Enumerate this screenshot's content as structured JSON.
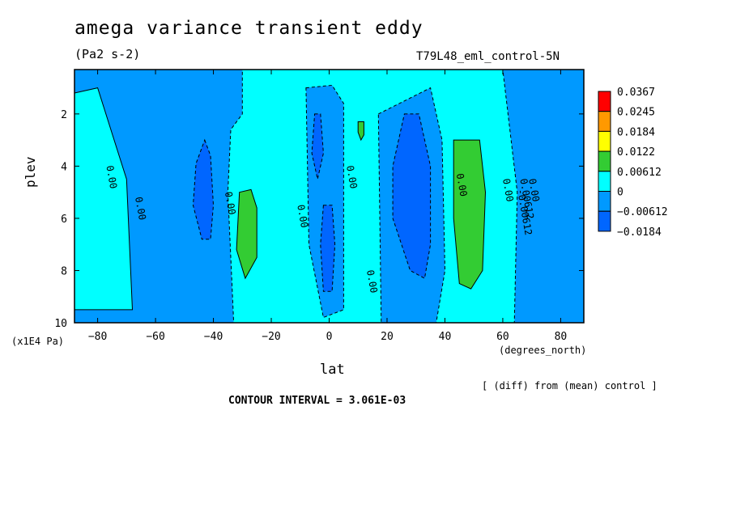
{
  "page": {
    "title": "amega variance transient eddy",
    "units": "(Pa2 s-2)",
    "run_label": "T79L48_eml_control-5N",
    "y_unit_note": "(x1E4 Pa)",
    "x_unit_note": "(degrees_north)",
    "diff_note": "[ (diff) from (mean) control ]",
    "contour_interval": "CONTOUR INTERVAL = 3.061E-03"
  },
  "chart_data": {
    "type": "heatmap",
    "xlabel": "lat",
    "ylabel": "plev",
    "xlim": [
      -88,
      88
    ],
    "ylim": [
      10,
      0.3
    ],
    "x_ticks": [
      -80,
      -60,
      -40,
      -20,
      0,
      20,
      40,
      60,
      80
    ],
    "y_ticks": [
      2,
      4,
      6,
      8,
      10
    ],
    "legend": {
      "position": "right",
      "labels": [
        "0.0367",
        "0.0245",
        "0.0184",
        "0.0122",
        "0.00612",
        "0",
        "-0.00612",
        "-0.0184"
      ],
      "colors": [
        "#ff0000",
        "#ff9900",
        "#ffff00",
        "#33cc33",
        "#00ffff",
        "#0099ff",
        "#0066ff"
      ]
    },
    "contour_labels": [
      "0.00",
      "0.00",
      "0.00",
      "0.00",
      "0.00",
      "0.00",
      "0.00",
      "0.00",
      "-0.00612",
      "0.00612",
      "0.00"
    ],
    "background_color": "#00ffff",
    "regions": [
      {
        "name": "sh-blue-band",
        "level": "-0.00612",
        "color": "#0099ff",
        "points": [
          [
            -88,
            0.3
          ],
          [
            -30,
            0.3
          ],
          [
            -30,
            2
          ],
          [
            -34,
            2.6
          ],
          [
            -35,
            5
          ],
          [
            -33,
            10
          ],
          [
            -88,
            10
          ]
        ]
      },
      {
        "name": "cyan-lobe-south",
        "level": "0",
        "color": "#00ffff",
        "points": [
          [
            -88,
            1.2
          ],
          [
            -80,
            1.0
          ],
          [
            -74,
            3.1
          ],
          [
            -70,
            4.5
          ],
          [
            -68,
            9.5
          ],
          [
            -88,
            9.5
          ]
        ]
      },
      {
        "name": "sh-min",
        "level": "-0.0184",
        "color": "#0066ff",
        "points": [
          [
            -43,
            3.0
          ],
          [
            -41,
            3.6
          ],
          [
            -40,
            5.5
          ],
          [
            -41,
            6.8
          ],
          [
            -44,
            6.8
          ],
          [
            -47,
            5.5
          ],
          [
            -46,
            3.9
          ]
        ]
      },
      {
        "name": "sh-max",
        "level": "0.00612",
        "color": "#33cc33",
        "points": [
          [
            -31,
            5.0
          ],
          [
            -27,
            4.9
          ],
          [
            -25,
            5.6
          ],
          [
            -25,
            7.5
          ],
          [
            -29,
            8.3
          ],
          [
            -32,
            7.2
          ]
        ]
      },
      {
        "name": "eq-blue",
        "level": "-0.00612",
        "color": "#0099ff",
        "points": [
          [
            -8,
            1.0
          ],
          [
            1,
            0.9
          ],
          [
            5,
            1.6
          ],
          [
            5,
            9.5
          ],
          [
            -2,
            9.8
          ],
          [
            -7,
            7
          ]
        ]
      },
      {
        "name": "eq-min-upper",
        "level": "-0.0184",
        "color": "#0066ff",
        "points": [
          [
            -5,
            2.0
          ],
          [
            -3,
            2.0
          ],
          [
            -2,
            3.5
          ],
          [
            -4,
            4.5
          ],
          [
            -6,
            3.5
          ]
        ]
      },
      {
        "name": "eq-min-lower",
        "level": "-0.0184",
        "color": "#0066ff",
        "points": [
          [
            -2,
            5.5
          ],
          [
            1,
            5.5
          ],
          [
            2,
            7
          ],
          [
            1,
            8.8
          ],
          [
            -2,
            8.8
          ],
          [
            -3,
            7
          ]
        ]
      },
      {
        "name": "eq-max",
        "level": "0.00612",
        "color": "#33cc33",
        "points": [
          [
            10,
            2.3
          ],
          [
            12,
            2.3
          ],
          [
            12,
            2.8
          ],
          [
            11,
            3.0
          ],
          [
            10,
            2.7
          ]
        ]
      },
      {
        "name": "nh-blue",
        "level": "-0.00612",
        "color": "#0099ff",
        "points": [
          [
            17,
            2.0
          ],
          [
            35,
            1.0
          ],
          [
            39,
            3
          ],
          [
            40,
            8
          ],
          [
            37,
            10
          ],
          [
            18,
            10
          ]
        ]
      },
      {
        "name": "nh-min",
        "level": "-0.0184",
        "color": "#0066ff",
        "points": [
          [
            26,
            2.0
          ],
          [
            31,
            2.0
          ],
          [
            35,
            4
          ],
          [
            35,
            7
          ],
          [
            33,
            8.3
          ],
          [
            28,
            8
          ],
          [
            22,
            6
          ],
          [
            22,
            4
          ]
        ]
      },
      {
        "name": "nh-max",
        "level": "0.00612",
        "color": "#33cc33",
        "points": [
          [
            43,
            3.0
          ],
          [
            52,
            3.0
          ],
          [
            54,
            5
          ],
          [
            53,
            8
          ],
          [
            49,
            8.7
          ],
          [
            45,
            8.5
          ],
          [
            43,
            6
          ]
        ]
      },
      {
        "name": "north-blue",
        "level": "-0.00612",
        "color": "#0099ff",
        "points": [
          [
            60,
            0.3
          ],
          [
            88,
            0.3
          ],
          [
            88,
            10
          ],
          [
            64,
            10
          ],
          [
            65,
            5
          ]
        ]
      }
    ]
  }
}
